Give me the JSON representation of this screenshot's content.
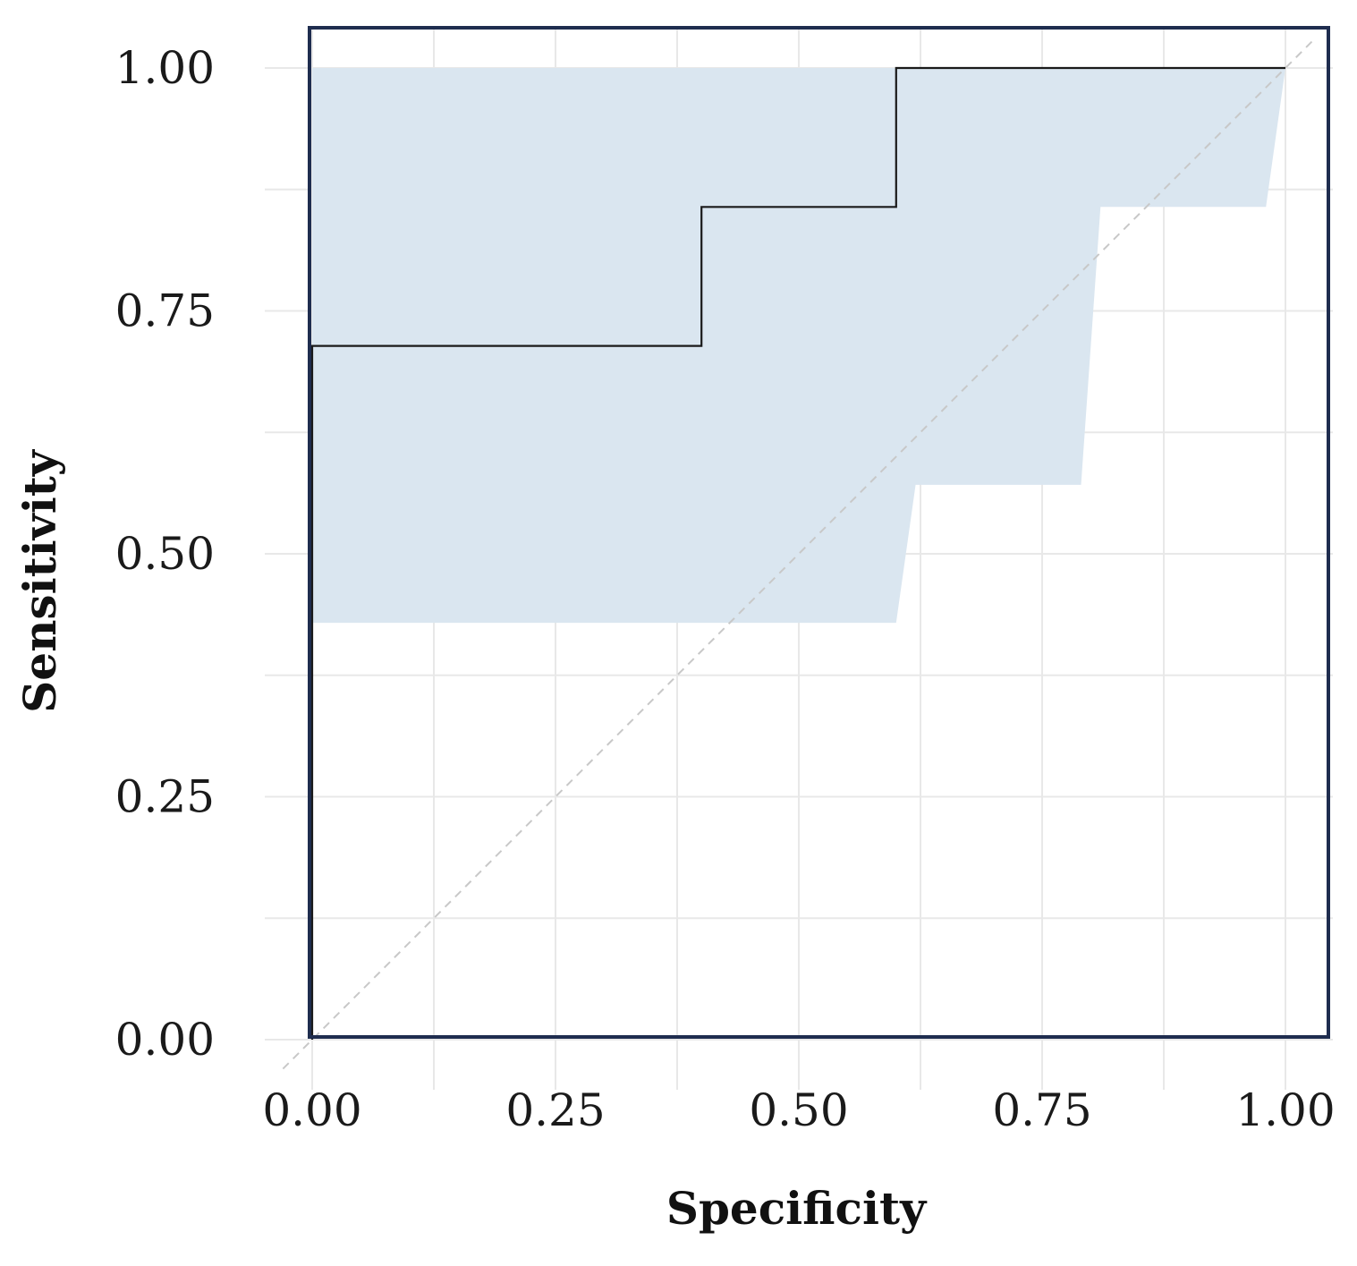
{
  "chart_data": {
    "type": "line",
    "title": "",
    "xlabel": "Specificity",
    "ylabel": "Sensitivity",
    "xlim": [
      0,
      1
    ],
    "ylim": [
      0,
      1
    ],
    "x_ticks": [
      0,
      0.25,
      0.5,
      0.75,
      1
    ],
    "y_ticks": [
      0,
      0.25,
      0.5,
      0.75,
      1
    ],
    "x_tick_labels": [
      "0.00",
      "0.25",
      "0.50",
      "0.75",
      "1.00"
    ],
    "y_tick_labels": [
      "0.00",
      "0.25",
      "0.50",
      "0.75",
      "1.00"
    ],
    "grid": true,
    "legend": "none",
    "series": [
      {
        "kind": "step-line",
        "x": [
          0.0,
          0.0,
          0.4,
          0.4,
          0.6,
          0.6,
          1.0
        ],
        "y": [
          0.0,
          0.714,
          0.714,
          0.857,
          0.857,
          1.0,
          1.0
        ]
      }
    ],
    "confidence_band": {
      "upper": {
        "x": [
          0.0,
          1.0
        ],
        "y": [
          1.0,
          1.0
        ]
      },
      "lower": {
        "x": [
          0.0,
          0.6,
          0.62,
          0.79,
          0.81,
          0.98,
          1.0
        ],
        "y": [
          0.429,
          0.429,
          0.571,
          0.571,
          0.857,
          0.857,
          1.0
        ]
      }
    },
    "reference_line": {
      "x": [
        -0.03,
        1.03
      ],
      "y": [
        -0.03,
        1.03
      ]
    },
    "colors": {
      "band": "#dae6f0",
      "line": "#1a1a1a",
      "frame": "#1f2d4f",
      "grid": "#e8e8e8",
      "reference": "#c8c8c8"
    }
  }
}
